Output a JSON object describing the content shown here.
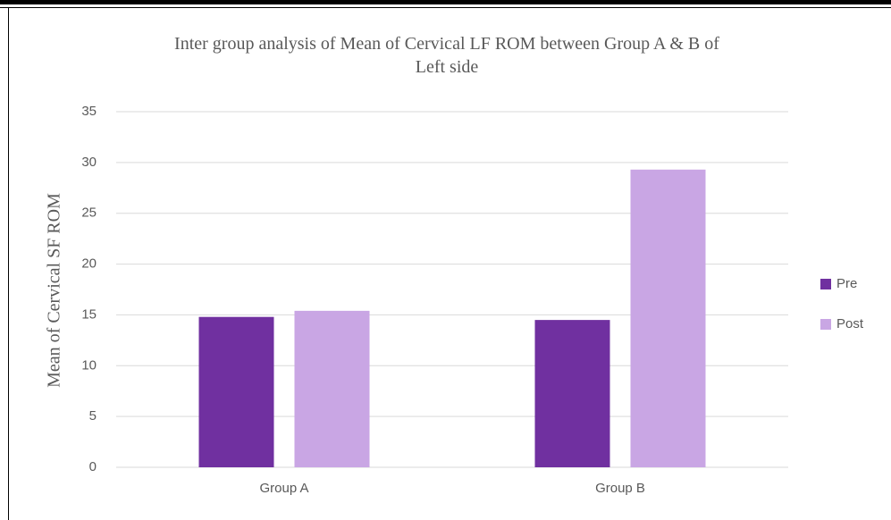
{
  "chart_data": {
    "type": "bar",
    "title": "Inter group analysis of Mean of Cervical LF ROM between Group A & B of Left side",
    "y_label": "Mean of Cervical SF ROM",
    "categories": [
      "Group A",
      "Group B"
    ],
    "series": [
      {
        "name": "Pre",
        "color": "#7030a0",
        "values": [
          14.8,
          14.5
        ]
      },
      {
        "name": "Post",
        "color": "#c9a6e4",
        "values": [
          15.4,
          29.3
        ]
      }
    ],
    "ylim": [
      0,
      35
    ],
    "yticks": [
      0,
      5,
      10,
      15,
      20,
      25,
      30,
      35
    ],
    "grid": true,
    "legend": "right"
  }
}
